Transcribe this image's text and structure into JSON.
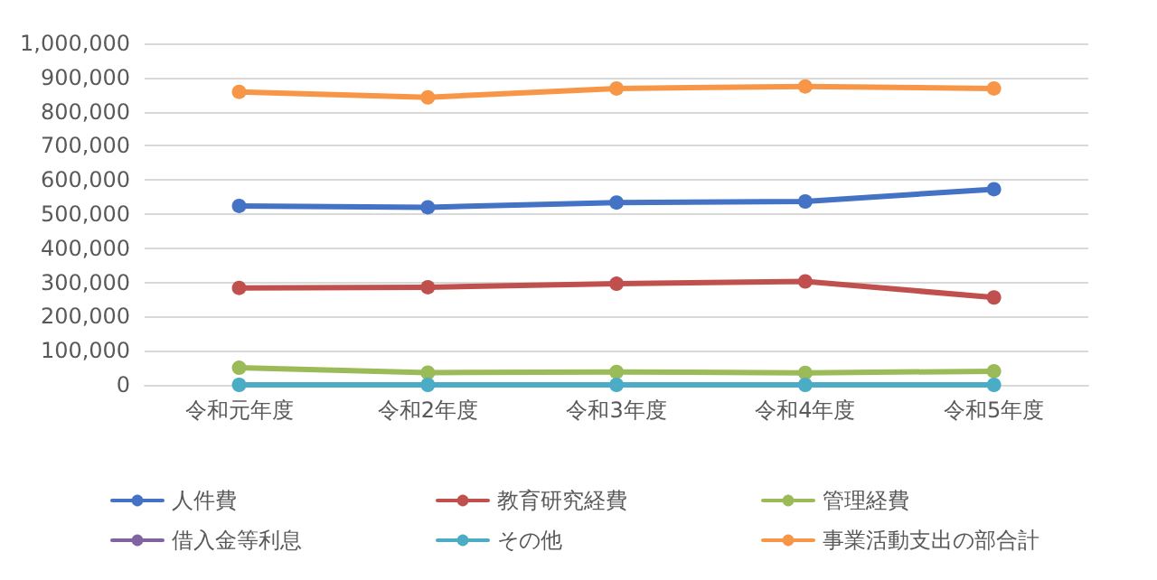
{
  "chart_data": {
    "type": "line",
    "categories": [
      "令和元年度",
      "令和2年度",
      "令和3年度",
      "令和4年度",
      "令和5年度"
    ],
    "series": [
      {
        "name": "人件費",
        "color": "#4472c4",
        "values": [
          524000,
          520000,
          534000,
          537000,
          573000
        ]
      },
      {
        "name": "教育研究経費",
        "color": "#c0504d",
        "values": [
          284000,
          286000,
          296000,
          303000,
          256000
        ]
      },
      {
        "name": "管理経費",
        "color": "#9bbb59",
        "values": [
          50000,
          36000,
          38000,
          35000,
          40000
        ]
      },
      {
        "name": "借入金等利息",
        "color": "#8064a2",
        "values": [
          null,
          null,
          null,
          null,
          null
        ]
      },
      {
        "name": "その他",
        "color": "#4bacc6",
        "values": [
          0,
          0,
          0,
          0,
          0
        ]
      },
      {
        "name": "事業活動支出の部合計",
        "color": "#f79646",
        "values": [
          858000,
          842000,
          868000,
          874000,
          868000
        ]
      }
    ],
    "ylim": [
      0,
      1000000
    ],
    "yticks": [
      0,
      {
        "value": 100000,
        "label": "100,000"
      },
      {
        "value": 200000,
        "label": "200,000"
      },
      {
        "value": 300000,
        "label": "300,000"
      },
      {
        "value": 400000,
        "label": "400,000"
      },
      {
        "value": 500000,
        "label": "500,000"
      },
      {
        "value": 600000,
        "label": "600,000"
      },
      {
        "value": 700000,
        "label": "700,000"
      },
      {
        "value": 800000,
        "label": "800,000"
      },
      {
        "value": 900000,
        "label": "900,000"
      },
      {
        "value": 1000000,
        "label": "1,000,000"
      }
    ],
    "grid": "y",
    "legend": "bottom",
    "marker": "circle",
    "line_style": "solid"
  }
}
